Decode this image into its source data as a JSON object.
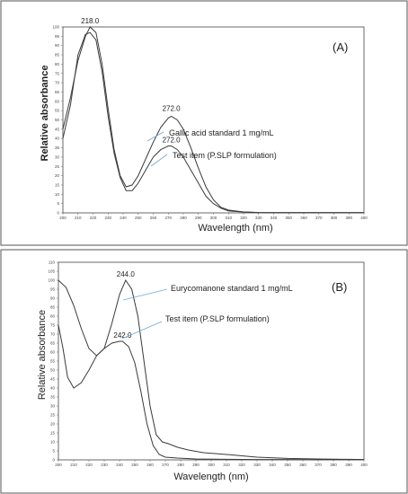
{
  "chart_data": [
    {
      "type": "line",
      "panel_label": "(A)",
      "xlabel": "Wavelength (nm)",
      "ylabel": "Relative absorbance",
      "xlim": [
        200,
        400
      ],
      "ylim": [
        0,
        100
      ],
      "x_ticks": [
        "200",
        "210",
        "220",
        "230",
        "240",
        "250",
        "260",
        "270",
        "280",
        "290",
        "300",
        "310",
        "320",
        "330",
        "340",
        "350",
        "360",
        "370",
        "380",
        "390",
        "400"
      ],
      "y_ticks": [
        "0",
        "5",
        "10",
        "15",
        "20",
        "25",
        "30",
        "35",
        "40",
        "45",
        "50",
        "55",
        "60",
        "65",
        "70",
        "75",
        "80",
        "85",
        "90",
        "95",
        "100"
      ],
      "annotations": [
        {
          "text": "218.0",
          "x": 218,
          "y": 100
        },
        {
          "text": "272.0",
          "x": 272,
          "y": 53
        },
        {
          "text": "272.0",
          "x": 272,
          "y": 36
        }
      ],
      "series": [
        {
          "name": "Gallic acid standard 1 mg/mL",
          "x": [
            200,
            205,
            210,
            215,
            218,
            222,
            226,
            230,
            234,
            238,
            242,
            246,
            250,
            255,
            260,
            265,
            270,
            272,
            276,
            280,
            285,
            290,
            295,
            300,
            305,
            310,
            320,
            330,
            340,
            360,
            380,
            400
          ],
          "y": [
            45,
            62,
            82,
            95,
            100,
            97,
            80,
            56,
            34,
            20,
            14,
            15,
            20,
            29,
            38,
            46,
            51,
            52,
            50,
            45,
            35,
            24,
            14,
            7,
            3,
            1.5,
            0.5,
            0.2,
            0.1,
            0.1,
            0.1,
            0.1
          ]
        },
        {
          "name": "Test item (P.SLP formulation)",
          "x": [
            200,
            205,
            210,
            215,
            218,
            222,
            226,
            230,
            234,
            238,
            242,
            246,
            250,
            255,
            260,
            265,
            270,
            272,
            276,
            280,
            285,
            290,
            295,
            300,
            305,
            310,
            320,
            330,
            340,
            360,
            380,
            400
          ],
          "y": [
            40,
            58,
            85,
            96,
            97,
            93,
            76,
            52,
            32,
            19,
            12,
            12,
            16,
            23,
            30,
            34,
            36,
            36,
            34,
            30,
            23,
            16,
            9,
            5,
            2.5,
            1,
            0.5,
            0.2,
            0.1,
            0.1,
            0.1,
            0.1
          ]
        }
      ]
    },
    {
      "type": "line",
      "panel_label": "(B)",
      "xlabel": "Wavelength (nm)",
      "ylabel": "Relative absorbance",
      "xlim": [
        200,
        400
      ],
      "ylim": [
        0,
        110
      ],
      "x_ticks": [
        "200",
        "210",
        "220",
        "230",
        "240",
        "250",
        "260",
        "270",
        "280",
        "290",
        "300",
        "310",
        "320",
        "330",
        "340",
        "350",
        "360",
        "370",
        "380",
        "390",
        "400"
      ],
      "y_ticks": [
        "0",
        "5",
        "10",
        "15",
        "20",
        "25",
        "30",
        "35",
        "40",
        "45",
        "50",
        "55",
        "60",
        "65",
        "70",
        "75",
        "80",
        "85",
        "90",
        "95",
        "100",
        "105",
        "110"
      ],
      "annotations": [
        {
          "text": "244.0",
          "x": 244,
          "y": 100
        },
        {
          "text": "242.0",
          "x": 242,
          "y": 66
        }
      ],
      "series": [
        {
          "name": "Eurycomanone standard 1 mg/mL",
          "x": [
            200,
            205,
            210,
            215,
            220,
            225,
            230,
            235,
            240,
            244,
            248,
            252,
            256,
            260,
            264,
            268,
            272,
            278,
            285,
            295,
            310,
            330,
            350,
            370,
            390,
            400
          ],
          "y": [
            100,
            96,
            86,
            73,
            62,
            58,
            62,
            76,
            92,
            100,
            95,
            80,
            55,
            30,
            14,
            10,
            9,
            7,
            5.5,
            4,
            3,
            1.5,
            0.8,
            0.5,
            0.3,
            0.2
          ],
          "connector": "Eurycomanone standard 1 mg/mL"
        },
        {
          "name": "Test item (P.SLP formulation)",
          "x": [
            200,
            203,
            206,
            210,
            215,
            220,
            225,
            230,
            235,
            240,
            242,
            246,
            250,
            254,
            258,
            262,
            266,
            270,
            278,
            290,
            310,
            330,
            350,
            370,
            390,
            400
          ],
          "y": [
            75,
            62,
            46,
            40,
            43,
            50,
            58,
            62,
            65,
            66,
            66,
            63,
            54,
            38,
            20,
            8,
            3,
            1.5,
            1,
            0.5,
            0.3,
            0.2,
            0.2,
            0.1,
            0.1,
            0.1
          ]
        }
      ]
    }
  ]
}
